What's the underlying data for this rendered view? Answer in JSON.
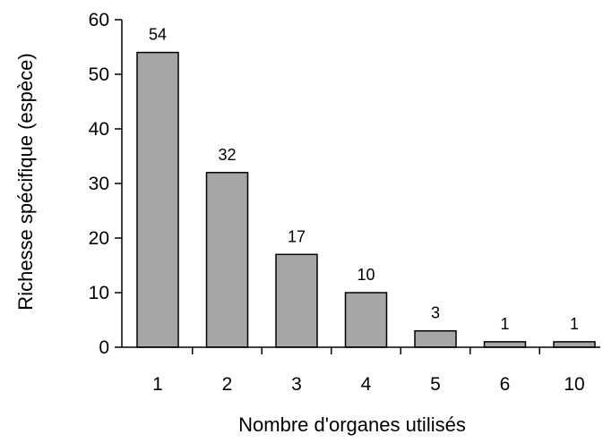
{
  "chart_data": {
    "type": "bar",
    "categories": [
      "1",
      "2",
      "3",
      "4",
      "5",
      "6",
      "10"
    ],
    "values": [
      54,
      32,
      17,
      10,
      3,
      1,
      1
    ],
    "data_labels": [
      "54",
      "32",
      "17",
      "10",
      "3",
      "1",
      "1"
    ],
    "title": "",
    "xlabel": "Nombre d'organes utilisés",
    "ylabel": "Richesse spécifique (espèce)",
    "ylim": [
      0,
      60
    ],
    "yticks": [
      0,
      10,
      20,
      30,
      40,
      50,
      60
    ],
    "ytick_labels": [
      "0",
      "10",
      "20",
      "30",
      "40",
      "50",
      "60"
    ],
    "grid": false,
    "legend": "none",
    "bar_color": "#a6a6a6"
  }
}
